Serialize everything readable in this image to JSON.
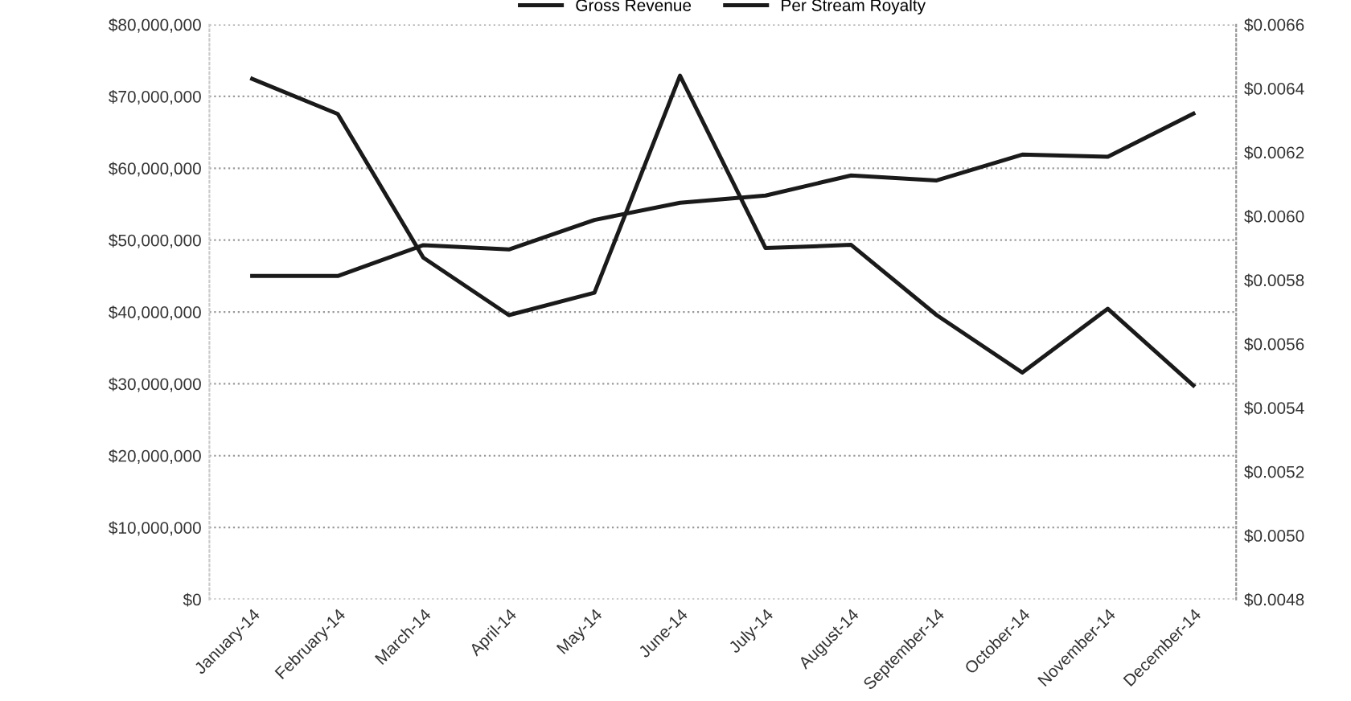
{
  "chart_data": {
    "type": "line",
    "categories": [
      "January-14",
      "February-14",
      "March-14",
      "April-14",
      "May-14",
      "June-14",
      "July-14",
      "August-14",
      "September-14",
      "October-14",
      "November-14",
      "December-14"
    ],
    "series": [
      {
        "name": "Gross Revenue",
        "color": "#1a1a1a",
        "values": [
          45000000,
          45000000,
          49300000,
          48700000,
          52800000,
          55200000,
          56200000,
          59000000,
          58300000,
          61900000,
          61600000,
          67600000
        ]
      },
      {
        "name": "Per Stream Royalty",
        "color": "#1a1a1a",
        "axis": "y2",
        "values": [
          0.00643,
          0.00632,
          0.00587,
          0.00569,
          0.00576,
          0.00644,
          0.0059,
          0.00591,
          0.00569,
          0.00551,
          0.00571,
          0.00547
        ]
      }
    ],
    "ylim": [
      0,
      80000000
    ],
    "yticks": [
      {
        "value": 0,
        "label": "$0"
      },
      {
        "value": 10000000,
        "label": "$10,000,000"
      },
      {
        "value": 20000000,
        "label": "$20,000,000"
      },
      {
        "value": 30000000,
        "label": "$30,000,000"
      },
      {
        "value": 40000000,
        "label": "$40,000,000"
      },
      {
        "value": 50000000,
        "label": "$50,000,000"
      },
      {
        "value": 60000000,
        "label": "$60,000,000"
      },
      {
        "value": 70000000,
        "label": "$70,000,000"
      },
      {
        "value": 80000000,
        "label": "$80,000,000"
      }
    ],
    "y2lim": [
      0.0048,
      0.0066
    ],
    "y2ticks": [
      {
        "value": 0.0048,
        "label": "$0.0048"
      },
      {
        "value": 0.005,
        "label": "$0.0050"
      },
      {
        "value": 0.0052,
        "label": "$0.0052"
      },
      {
        "value": 0.0054,
        "label": "$0.0054"
      },
      {
        "value": 0.0056,
        "label": "$0.0056"
      },
      {
        "value": 0.0058,
        "label": "$0.0058"
      },
      {
        "value": 0.006,
        "label": "$0.0060"
      },
      {
        "value": 0.0062,
        "label": "$0.0062"
      },
      {
        "value": 0.0064,
        "label": "$0.0064"
      },
      {
        "value": 0.0066,
        "label": "$0.0066"
      }
    ],
    "grid": "y",
    "legend": "top",
    "marker": "none",
    "line_style": "solid"
  }
}
